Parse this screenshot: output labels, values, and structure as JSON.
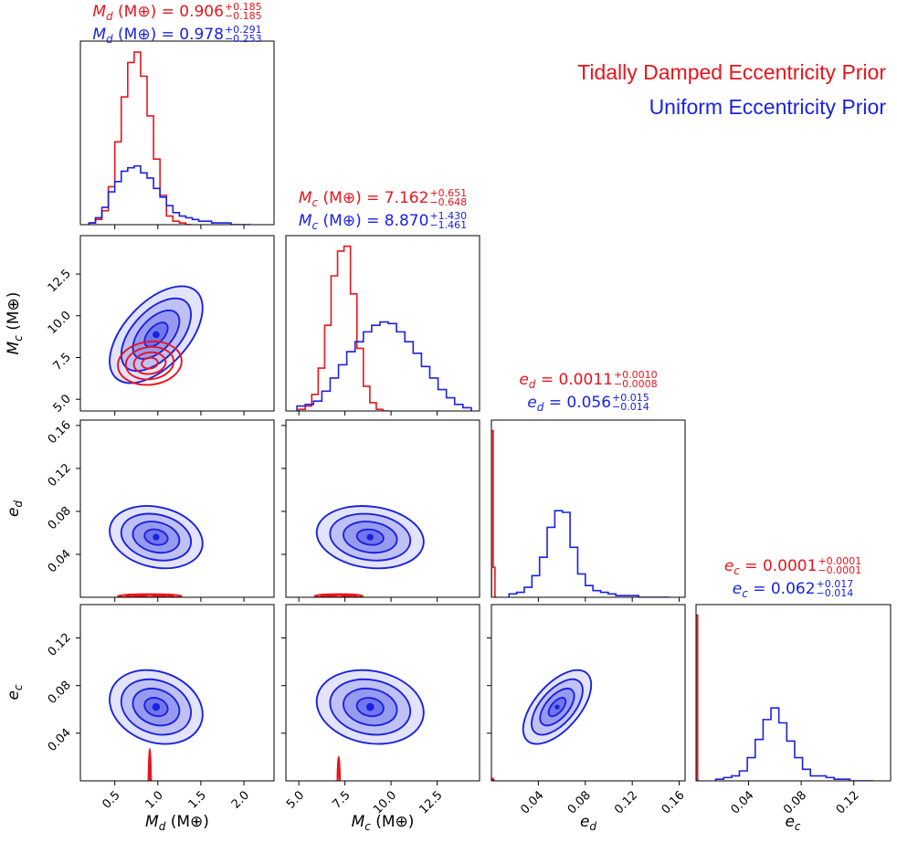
{
  "chart_data": {
    "type": "corner",
    "legend": [
      {
        "label": "Tidally Damped Eccentricity Prior",
        "color": "#e8141c"
      },
      {
        "label": "Uniform Eccentricity Prior",
        "color": "#1a22e0"
      }
    ],
    "parameters": [
      {
        "key": "Md",
        "symbol": "M",
        "sub": "d",
        "unit": "(M⊕)",
        "axis_label": "Md (M⊕)",
        "range": [
          0.1,
          2.35
        ],
        "ticks": [
          0.5,
          1.0,
          1.5,
          2.0
        ],
        "tick_labels": [
          "0.5",
          "1.0",
          "1.5",
          "2.0"
        ],
        "titles": [
          {
            "value": "0.906",
            "up": "+0.185",
            "down": "−0.185",
            "color": "#e8141c"
          },
          {
            "value": "0.978",
            "up": "+0.291",
            "down": "−0.253",
            "color": "#1a22e0"
          }
        ],
        "hist": [
          {
            "prior": "tidal",
            "bin_start": 0.2,
            "bin_width": 0.075,
            "values": [
              0.01,
              0.03,
              0.08,
              0.22,
              0.48,
              0.74,
              0.94,
              1.0,
              0.86,
              0.63,
              0.38,
              0.17,
              0.05,
              0.02,
              0.01,
              0.0
            ]
          },
          {
            "prior": "uniform",
            "bin_start": 0.2,
            "bin_width": 0.075,
            "values": [
              0.01,
              0.04,
              0.1,
              0.19,
              0.25,
              0.31,
              0.33,
              0.34,
              0.3,
              0.27,
              0.21,
              0.16,
              0.11,
              0.07,
              0.05,
              0.04,
              0.03,
              0.02,
              0.02,
              0.01,
              0.01,
              0.01,
              0.0,
              0.0,
              0.0
            ]
          }
        ]
      },
      {
        "key": "Mc",
        "symbol": "M",
        "sub": "c",
        "unit": "(M⊕)",
        "axis_label": "Mc (M⊕)",
        "range": [
          4.3,
          14.8
        ],
        "ticks": [
          5.0,
          7.5,
          10.0,
          12.5
        ],
        "tick_labels": [
          "5.0",
          "7.5",
          "10.0",
          "12.5"
        ],
        "titles": [
          {
            "value": "7.162",
            "up": "+0.651",
            "down": "−0.648",
            "color": "#e8141c"
          },
          {
            "value": "8.870",
            "up": "+1.430",
            "down": "−1.461",
            "color": "#1a22e0"
          }
        ],
        "hist": [
          {
            "prior": "tidal",
            "bin_start": 5.0,
            "bin_width": 0.35,
            "values": [
              0.01,
              0.03,
              0.1,
              0.26,
              0.52,
              0.82,
              0.97,
              1.0,
              0.71,
              0.38,
              0.15,
              0.05,
              0.01,
              0.0
            ]
          },
          {
            "prior": "uniform",
            "bin_start": 4.9,
            "bin_width": 0.45,
            "values": [
              0.03,
              0.04,
              0.06,
              0.12,
              0.2,
              0.28,
              0.36,
              0.42,
              0.48,
              0.52,
              0.54,
              0.53,
              0.48,
              0.42,
              0.35,
              0.27,
              0.2,
              0.13,
              0.08,
              0.04,
              0.02
            ]
          }
        ]
      },
      {
        "key": "ed",
        "symbol": "e",
        "sub": "d",
        "unit": "",
        "axis_label": "ed",
        "range": [
          0.0,
          0.165
        ],
        "ticks": [
          0.04,
          0.08,
          0.12,
          0.16
        ],
        "tick_labels": [
          "0.04",
          "0.08",
          "0.12",
          "0.16"
        ],
        "titles": [
          {
            "value": "0.0011",
            "up": "+0.0010",
            "down": "−0.0008",
            "color": "#e8141c"
          },
          {
            "value": "0.056",
            "up": "+0.015",
            "down": "−0.014",
            "color": "#1a22e0"
          }
        ],
        "hist": [
          {
            "prior": "tidal",
            "bin_start": 0.0,
            "bin_width": 0.0015,
            "values": [
              1.0,
              0.18,
              0.0
            ]
          },
          {
            "prior": "uniform",
            "bin_start": 0.015,
            "bin_width": 0.0065,
            "values": [
              0.02,
              0.03,
              0.06,
              0.13,
              0.24,
              0.42,
              0.52,
              0.51,
              0.3,
              0.14,
              0.07,
              0.04,
              0.03,
              0.02,
              0.01,
              0.01,
              0.01,
              0.0,
              0.0,
              0.0,
              0.0
            ]
          }
        ]
      },
      {
        "key": "ec",
        "symbol": "e",
        "sub": "c",
        "unit": "",
        "axis_label": "ec",
        "range": [
          0.0,
          0.148
        ],
        "ticks": [
          0.04,
          0.08,
          0.12
        ],
        "tick_labels": [
          "0.04",
          "0.08",
          "0.12"
        ],
        "titles": [
          {
            "value": "0.0001",
            "up": "+0.0001",
            "down": "−0.0001",
            "color": "#e8141c"
          },
          {
            "value": "0.062",
            "up": "+0.017",
            "down": "−0.014",
            "color": "#1a22e0"
          }
        ],
        "hist": [
          {
            "prior": "tidal",
            "bin_start": 0.0,
            "bin_width": 0.0012,
            "values": [
              1.0,
              0.0
            ]
          },
          {
            "prior": "uniform",
            "bin_start": 0.015,
            "bin_width": 0.006,
            "values": [
              0.01,
              0.02,
              0.03,
              0.06,
              0.14,
              0.25,
              0.37,
              0.44,
              0.35,
              0.24,
              0.14,
              0.07,
              0.03,
              0.03,
              0.02,
              0.01,
              0.01,
              0.0,
              0.0,
              0.0
            ]
          }
        ]
      }
    ],
    "posteriors_2d": {
      "uniform": {
        "color": "#1a22e0",
        "corr": {
          "Mc|Md": 0.55,
          "ed|Md": -0.2,
          "ed|Mc": -0.15,
          "ec|Md": -0.2,
          "ec|Mc": -0.15,
          "ec|ed": 0.6
        },
        "mean": {
          "Md": 0.98,
          "Mc": 8.87,
          "ed": 0.056,
          "ec": 0.062
        },
        "sigma": {
          "Md": 0.27,
          "Mc": 1.45,
          "ed": 0.0145,
          "ec": 0.0155
        }
      },
      "tidal": {
        "color": "#e8141c",
        "corr": {
          "Mc|Md": 0.1
        },
        "mean": {
          "Md": 0.906,
          "Mc": 7.162,
          "ed": 0.0011,
          "ec": 0.0001
        },
        "sigma": {
          "Md": 0.185,
          "Mc": 0.65,
          "ed": 0.0009,
          "ec": 0.0001
        }
      },
      "contour_levels_sigma": [
        0.5,
        1.0,
        1.5,
        2.0
      ]
    }
  }
}
